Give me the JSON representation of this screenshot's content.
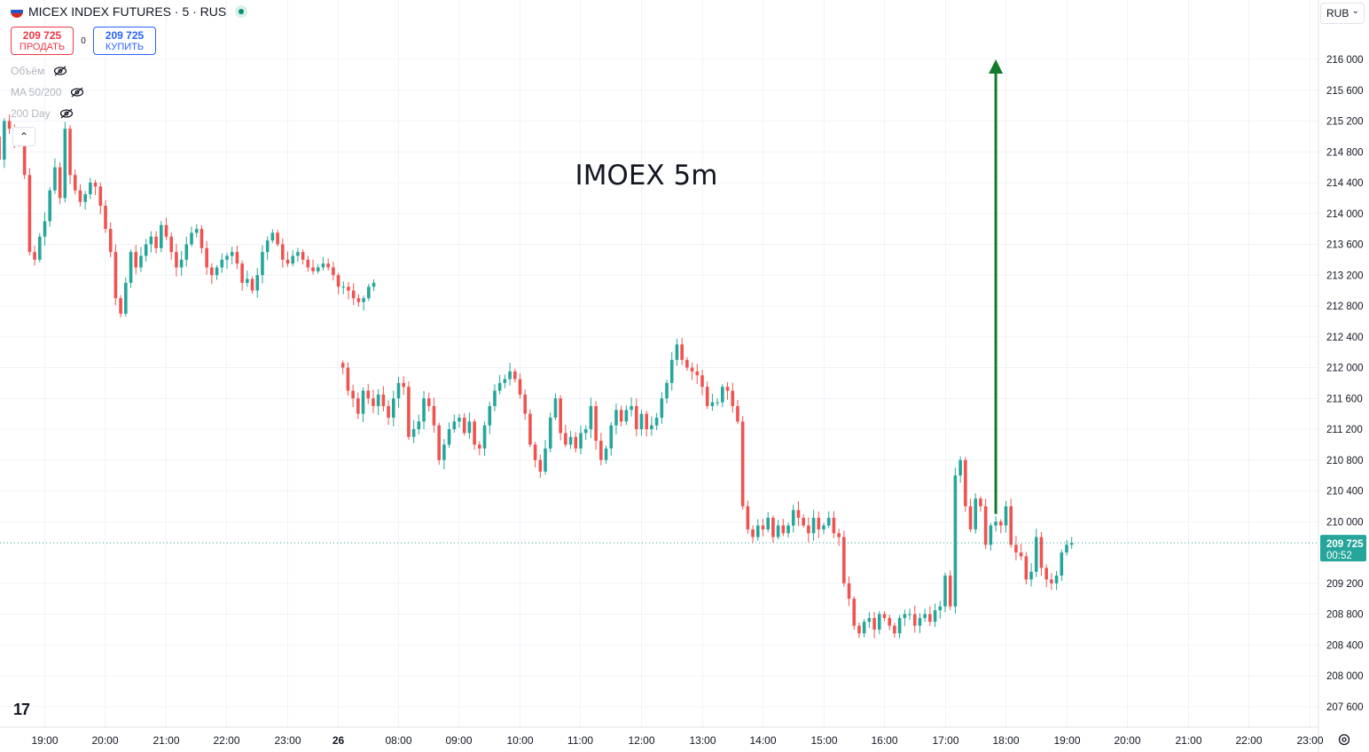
{
  "header": {
    "symbol_title": "MICEX INDEX FUTURES · 5 · RUS",
    "sell_price": "209 725",
    "sell_label": "ПРОДАТЬ",
    "spread": "0",
    "buy_price": "209 725",
    "buy_label": "КУПИТЬ"
  },
  "indicators": [
    "Объём",
    "MA 50/200",
    "200 Day"
  ],
  "currency_selector": "RUB",
  "colors": {
    "up": "#26a69a",
    "down": "#ef5350",
    "arrow": "#137a2c",
    "price_tag": "#26a69a",
    "grid": "#f0f3fa"
  },
  "chart_data": {
    "type": "candlestick",
    "annotation_text": "IMOEX 5m",
    "annotation_arrow": {
      "from_time": "17:50",
      "from_price": 210100,
      "to_price": 216000,
      "direction": "up"
    },
    "y_ticks": [
      216000,
      215600,
      215200,
      214800,
      214400,
      214000,
      213600,
      213200,
      212800,
      212400,
      212000,
      211600,
      211200,
      210800,
      210400,
      210000,
      209200,
      208800,
      208400,
      208000,
      207600
    ],
    "y_tick_labels": [
      "216 000",
      "215 600",
      "215 200",
      "214 800",
      "214 400",
      "214 000",
      "213 600",
      "213 200",
      "212 800",
      "212 400",
      "212 000",
      "211 600",
      "211 200",
      "210 800",
      "210 400",
      "210 000",
      "209 200",
      "208 800",
      "208 400",
      "208 000",
      "207 600"
    ],
    "x_tick_labels": [
      "19:00",
      "20:00",
      "21:00",
      "22:00",
      "23:00",
      "26",
      "08:00",
      "09:00",
      "10:00",
      "11:00",
      "12:00",
      "13:00",
      "14:00",
      "15:00",
      "16:00",
      "17:00",
      "18:00",
      "19:00",
      "20:00",
      "21:00",
      "22:00",
      "23:00"
    ],
    "last_price": 209725,
    "last_price_label": "209 725",
    "countdown": "00:52",
    "segments": [
      {
        "session": "evening",
        "start": "18:05",
        "closes": [
          214850,
          215000,
          214700,
          215200,
          215100,
          214950,
          214900,
          214500,
          213500,
          213400,
          213700,
          213900,
          214300,
          214600,
          214200,
          215100,
          214500,
          214300,
          214150,
          214250,
          214400,
          214350,
          214100,
          213800,
          213500,
          212900,
          212700,
          213100,
          213500,
          213300,
          213450,
          213600,
          213700,
          213550,
          213850,
          213700,
          213500,
          213300,
          213400,
          213600,
          213750,
          213800,
          213550,
          213300,
          213200,
          213300,
          213400,
          213450,
          213500,
          213350,
          213100,
          213150,
          213000,
          213200,
          213500,
          213650,
          213750,
          213600,
          213400,
          213350,
          213450,
          213500,
          213400,
          213300,
          213250,
          213300,
          213350,
          213300,
          213200,
          213050,
          213050,
          213000,
          212900,
          212850,
          212900,
          213050,
          213100
        ]
      },
      {
        "session": "day",
        "start": "07:05",
        "closes": [
          212000,
          211700,
          211600,
          211400,
          211700,
          211600,
          211500,
          211650,
          211500,
          211350,
          211600,
          211800,
          211750,
          211100,
          211200,
          211300,
          211600,
          211500,
          211250,
          210800,
          211000,
          211200,
          211300,
          211350,
          211150,
          211300,
          211000,
          210950,
          211250,
          211500,
          211700,
          211800,
          211850,
          211950,
          211850,
          211650,
          211400,
          211000,
          210800,
          210650,
          210950,
          211350,
          211600,
          211150,
          211000,
          211100,
          210950,
          211150,
          211200,
          211500,
          211050,
          210800,
          210950,
          211250,
          211450,
          211300,
          211450,
          211500,
          211200,
          211400,
          211200,
          211250,
          211350,
          211600,
          211800,
          212100,
          212300,
          212100,
          212000,
          211950,
          211900,
          211750,
          211500,
          211550,
          211550,
          211750,
          211700,
          211500,
          211300,
          210200,
          209900,
          209800,
          209950,
          209900,
          210050,
          209800,
          209950,
          209850,
          209950,
          210150,
          210050,
          209950,
          209850,
          210050,
          209900,
          209950,
          210050,
          209850,
          209800,
          209200,
          209000,
          208650,
          208550,
          208700,
          208750,
          208600,
          208800,
          208750,
          208650,
          208550,
          208750,
          208800,
          208800,
          208650,
          208750,
          208800,
          208700,
          208850,
          208900,
          209300,
          208900,
          210600,
          210800,
          210200,
          209900,
          210300,
          210200,
          209700,
          209950,
          210000,
          209950,
          210200,
          209700,
          209600,
          209550,
          209250,
          209350,
          209800,
          209400,
          209250,
          209200,
          209300,
          209600,
          209700,
          209725
        ]
      }
    ]
  }
}
